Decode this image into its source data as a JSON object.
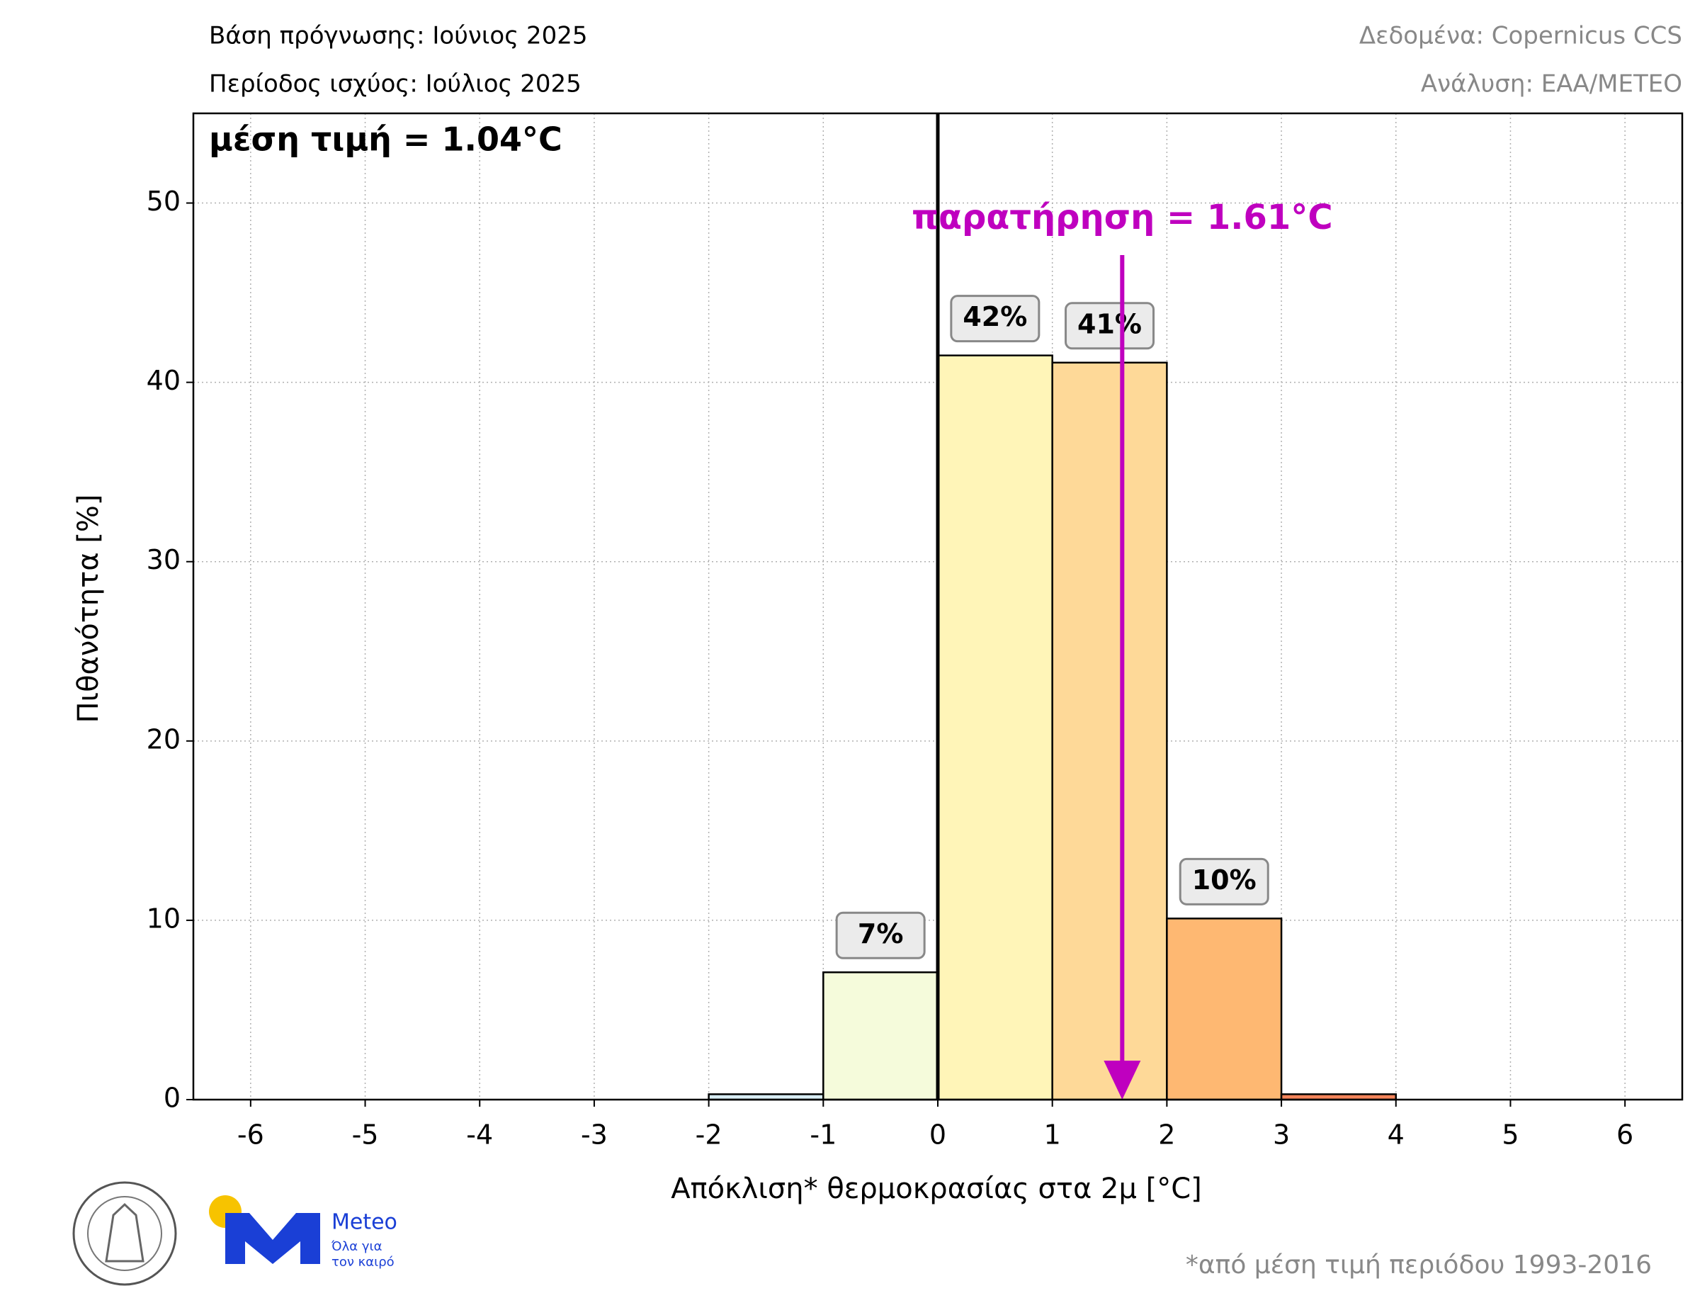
{
  "chart_data": {
    "type": "histogram",
    "header_left": [
      "Βάση πρόγνωσης: Ιούνιος 2025",
      "Περίοδος ισχύος: Ιούλιος 2025"
    ],
    "header_right": [
      "Δεδομένα: Copernicus CCS",
      "Ανάλυση: ΕΑΑ/METEO"
    ],
    "mean_label": "μέση τιμή = 1.04°C",
    "observation": {
      "label": "παρατήρηση = 1.61°C",
      "value": 1.61,
      "color": "#bf00bf"
    },
    "vline": 0,
    "xlabel": "Απόκλιση* θερμοκρασίας στα 2μ [°C]",
    "ylabel": "Πιθανότητα [%]",
    "footnote": "*από μέση τιμή περιόδου 1993-2016",
    "bins": [
      -6,
      -5,
      -4,
      -3,
      -2,
      -1,
      0,
      1,
      2,
      3,
      4,
      5,
      6
    ],
    "values": [
      0,
      0,
      0,
      0,
      0.3,
      7.1,
      41.5,
      41.1,
      10.1,
      0.3,
      0,
      0
    ],
    "value_labels": [
      null,
      null,
      null,
      null,
      null,
      "7%",
      "42%",
      "41%",
      "10%",
      null,
      null,
      null
    ],
    "colors": [
      "#c6dbef",
      "#c6dbef",
      "#c6dbef",
      "#c6dbef",
      "#d9eef5",
      "#f5fbdb",
      "#fff5b8",
      "#fed998",
      "#feb872",
      "#f4845a",
      "#e34a33",
      "#e34a33"
    ],
    "xlim": [
      -6.5,
      6.5
    ],
    "ylim": [
      0,
      55
    ],
    "xticks": [
      -6,
      -5,
      -4,
      -3,
      -2,
      -1,
      0,
      1,
      2,
      3,
      4,
      5,
      6
    ],
    "yticks": [
      0,
      10,
      20,
      30,
      40,
      50
    ],
    "grid": true
  },
  "logo": {
    "name": "Meteo",
    "tagline": [
      "Όλα για",
      "τον καιρό"
    ]
  }
}
